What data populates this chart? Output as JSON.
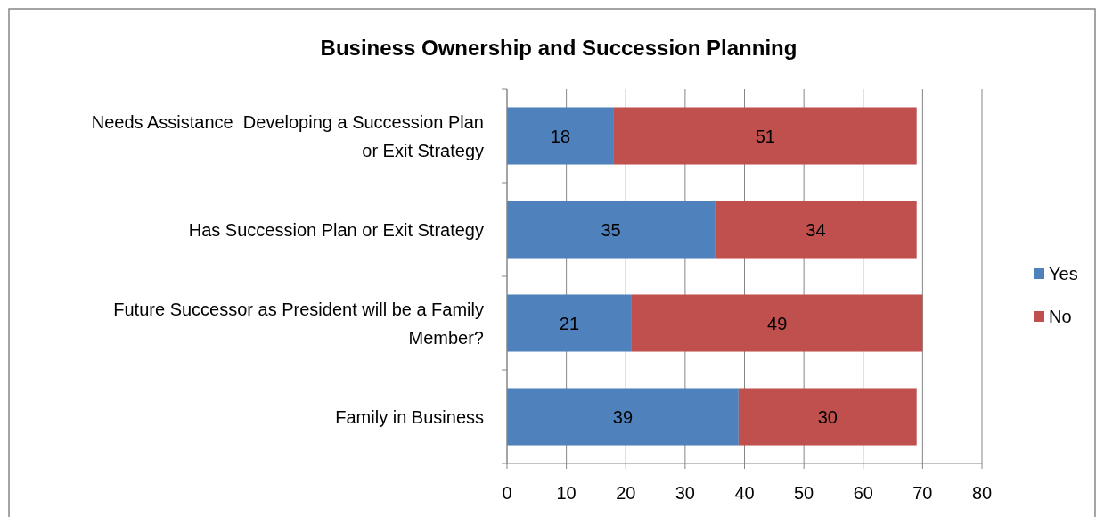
{
  "chart_data": {
    "type": "bar",
    "orientation": "horizontal",
    "stacked": true,
    "title": "Business Ownership and Succession Planning",
    "categories": [
      "Needs Assistance  Developing a Succession Plan or Exit Strategy",
      "Has Succession Plan or Exit Strategy",
      "Future Successor as President will be a Family Member?",
      "Family in Business"
    ],
    "series": [
      {
        "name": "Yes",
        "color": "#4f81bd",
        "values": [
          18,
          35,
          21,
          39
        ]
      },
      {
        "name": "No",
        "color": "#c0504d",
        "values": [
          51,
          34,
          49,
          30
        ]
      }
    ],
    "xlim": [
      0,
      80
    ],
    "xticks": [
      0,
      10,
      20,
      30,
      40,
      50,
      60,
      70,
      80
    ],
    "grid": "x",
    "legend": "right",
    "data_labels": true
  }
}
